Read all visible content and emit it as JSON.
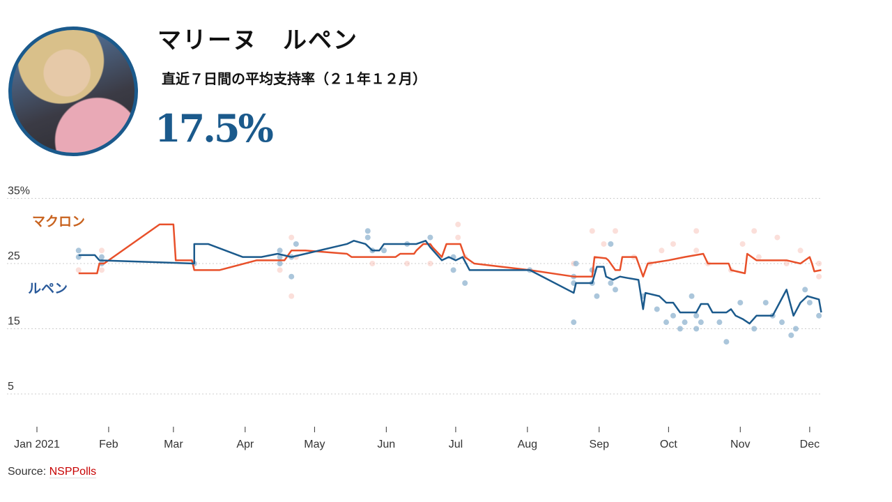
{
  "header": {
    "name": "マリーヌ　ルペン",
    "subtitle": "直近７日間の平均支持率（２１年１２月）",
    "value": "17.5%",
    "accent": "#1b5a8c"
  },
  "source": {
    "label": "Source:",
    "link": "NSPPolls"
  },
  "chart_data": {
    "type": "line",
    "title": "",
    "xlabel": "",
    "ylabel": "",
    "x_unit": "day of year 2021 (0 = Jan 1)",
    "xlim": [
      0,
      345
    ],
    "ylim": [
      0,
      37
    ],
    "yticks": [
      {
        "v": 35,
        "label": "35%"
      },
      {
        "v": 25,
        "label": "25"
      },
      {
        "v": 15,
        "label": "15"
      },
      {
        "v": 5,
        "label": "5"
      }
    ],
    "xticks": [
      {
        "d": 0,
        "label": "Jan 2021"
      },
      {
        "d": 31,
        "label": "Feb"
      },
      {
        "d": 59,
        "label": "Mar"
      },
      {
        "d": 90,
        "label": "Apr"
      },
      {
        "d": 120,
        "label": "May"
      },
      {
        "d": 151,
        "label": "Jun"
      },
      {
        "d": 181,
        "label": "Jul"
      },
      {
        "d": 212,
        "label": "Aug"
      },
      {
        "d": 243,
        "label": "Sep"
      },
      {
        "d": 273,
        "label": "Oct"
      },
      {
        "d": 304,
        "label": "Nov"
      },
      {
        "d": 334,
        "label": "Dec"
      }
    ],
    "grid": true,
    "series": [
      {
        "name": "マクロン",
        "color": "#e8502a",
        "poll_color": "#f6b8ae",
        "line": [
          [
            18,
            23.5
          ],
          [
            26,
            23.5
          ],
          [
            27,
            25
          ],
          [
            29,
            25
          ],
          [
            53,
            31
          ],
          [
            59,
            31
          ],
          [
            60,
            25.5
          ],
          [
            67,
            25.5
          ],
          [
            68,
            24
          ],
          [
            79,
            24
          ],
          [
            95,
            25.5
          ],
          [
            107,
            25.5
          ],
          [
            108,
            26
          ],
          [
            110,
            27
          ],
          [
            116,
            27
          ],
          [
            134,
            26.5
          ],
          [
            136,
            26
          ],
          [
            155,
            26
          ],
          [
            157,
            26.5
          ],
          [
            163,
            26.5
          ],
          [
            164,
            27
          ],
          [
            167,
            28
          ],
          [
            170,
            28
          ],
          [
            171,
            27.5
          ],
          [
            175,
            26
          ],
          [
            177,
            28
          ],
          [
            183,
            28
          ],
          [
            185,
            26
          ],
          [
            189,
            25
          ],
          [
            213,
            24
          ],
          [
            232,
            23
          ],
          [
            240,
            23
          ],
          [
            241,
            26
          ],
          [
            246,
            25.8
          ],
          [
            247,
            25.5
          ],
          [
            250,
            24
          ],
          [
            252,
            24
          ],
          [
            253,
            26
          ],
          [
            259,
            26
          ],
          [
            262,
            23
          ],
          [
            264,
            25
          ],
          [
            273,
            25.5
          ],
          [
            280,
            26
          ],
          [
            288,
            26.5
          ],
          [
            290,
            25
          ],
          [
            299,
            25
          ],
          [
            300,
            24
          ],
          [
            306,
            23.5
          ],
          [
            307,
            26.5
          ],
          [
            311,
            25.5
          ],
          [
            324,
            25.5
          ],
          [
            330,
            25
          ],
          [
            334,
            26
          ],
          [
            335,
            25
          ],
          [
            336,
            23.8
          ],
          [
            339,
            24
          ]
        ],
        "polls": [
          [
            18,
            24
          ],
          [
            28,
            27
          ],
          [
            28,
            24
          ],
          [
            105,
            24
          ],
          [
            110,
            29
          ],
          [
            110,
            20
          ],
          [
            112,
            26
          ],
          [
            145,
            25
          ],
          [
            160,
            25
          ],
          [
            170,
            25
          ],
          [
            182,
            31
          ],
          [
            182,
            29
          ],
          [
            185,
            26
          ],
          [
            232,
            25
          ],
          [
            240,
            30
          ],
          [
            245,
            28
          ],
          [
            250,
            30
          ],
          [
            258,
            26
          ],
          [
            265,
            25
          ],
          [
            270,
            27
          ],
          [
            275,
            28
          ],
          [
            285,
            30
          ],
          [
            285,
            27
          ],
          [
            290,
            25
          ],
          [
            300,
            24
          ],
          [
            305,
            28
          ],
          [
            310,
            30
          ],
          [
            312,
            26
          ],
          [
            320,
            29
          ],
          [
            324,
            25
          ],
          [
            330,
            27
          ],
          [
            338,
            25
          ],
          [
            338,
            23
          ]
        ]
      },
      {
        "name": "ルペン",
        "color": "#1b5a8c",
        "poll_color": "#8fb3cf",
        "line": [
          [
            18,
            26.3
          ],
          [
            25,
            26.3
          ],
          [
            27,
            25.5
          ],
          [
            68,
            25
          ],
          [
            68,
            28
          ],
          [
            74,
            28
          ],
          [
            89,
            26
          ],
          [
            97,
            26
          ],
          [
            104,
            26.5
          ],
          [
            110,
            26
          ],
          [
            116,
            26.5
          ],
          [
            134,
            28
          ],
          [
            137,
            28.5
          ],
          [
            142,
            28
          ],
          [
            145,
            27
          ],
          [
            148,
            27
          ],
          [
            150,
            28
          ],
          [
            164,
            28
          ],
          [
            168,
            28.5
          ],
          [
            170,
            27.5
          ],
          [
            175,
            25.5
          ],
          [
            178,
            26
          ],
          [
            181,
            25.5
          ],
          [
            184,
            26
          ],
          [
            187,
            24
          ],
          [
            213,
            24
          ],
          [
            232,
            20.5
          ],
          [
            233,
            22
          ],
          [
            240,
            22
          ],
          [
            242,
            24.5
          ],
          [
            245,
            24.5
          ],
          [
            246,
            23
          ],
          [
            249,
            22.5
          ],
          [
            252,
            23
          ],
          [
            255,
            22.8
          ],
          [
            260,
            22.5
          ],
          [
            262,
            18
          ],
          [
            263,
            20.5
          ],
          [
            269,
            20
          ],
          [
            272,
            19
          ],
          [
            275,
            19
          ],
          [
            278,
            17.5
          ],
          [
            285,
            17.5
          ],
          [
            287,
            18.8
          ],
          [
            290,
            18.8
          ],
          [
            292,
            17.5
          ],
          [
            298,
            17.5
          ],
          [
            300,
            18
          ],
          [
            302,
            17
          ],
          [
            305,
            16.5
          ],
          [
            308,
            15.8
          ],
          [
            311,
            17
          ],
          [
            318,
            17
          ],
          [
            321,
            19
          ],
          [
            324,
            21
          ],
          [
            327,
            17
          ],
          [
            330,
            19
          ],
          [
            333,
            20
          ],
          [
            338,
            19.5
          ],
          [
            339,
            17.5
          ]
        ],
        "polls": [
          [
            18,
            27
          ],
          [
            18,
            26
          ],
          [
            28,
            26
          ],
          [
            28,
            25
          ],
          [
            68,
            25
          ],
          [
            105,
            27
          ],
          [
            105,
            26
          ],
          [
            105,
            25
          ],
          [
            110,
            26
          ],
          [
            110,
            23
          ],
          [
            112,
            28
          ],
          [
            143,
            29
          ],
          [
            143,
            30
          ],
          [
            145,
            27
          ],
          [
            150,
            27
          ],
          [
            160,
            28
          ],
          [
            170,
            29
          ],
          [
            180,
            26
          ],
          [
            180,
            24
          ],
          [
            185,
            22
          ],
          [
            213,
            24
          ],
          [
            232,
            16
          ],
          [
            232,
            22
          ],
          [
            232,
            23
          ],
          [
            233,
            25
          ],
          [
            240,
            24
          ],
          [
            240,
            22
          ],
          [
            242,
            20
          ],
          [
            248,
            28
          ],
          [
            248,
            22
          ],
          [
            250,
            21
          ],
          [
            262,
            20
          ],
          [
            268,
            18
          ],
          [
            272,
            16
          ],
          [
            275,
            17
          ],
          [
            278,
            15
          ],
          [
            280,
            16
          ],
          [
            283,
            20
          ],
          [
            285,
            17
          ],
          [
            285,
            15
          ],
          [
            287,
            16
          ],
          [
            295,
            16
          ],
          [
            298,
            13
          ],
          [
            304,
            19
          ],
          [
            310,
            15
          ],
          [
            315,
            19
          ],
          [
            318,
            17
          ],
          [
            322,
            16
          ],
          [
            326,
            14
          ],
          [
            328,
            15
          ],
          [
            332,
            21
          ],
          [
            334,
            19
          ],
          [
            338,
            17
          ]
        ]
      }
    ]
  }
}
